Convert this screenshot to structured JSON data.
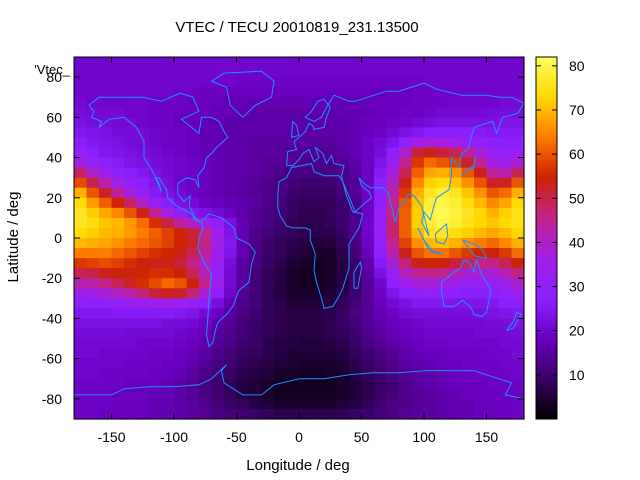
{
  "chart_data": {
    "type": "heatmap",
    "title": "VTEC / TECU 20010819_231.13500",
    "xlabel": "Longitude / deg",
    "ylabel": "Latitude / deg",
    "series_label": "'Vtec_",
    "xlim": [
      -180,
      180
    ],
    "ylim": [
      -90,
      90
    ],
    "xticks": [
      -150,
      -100,
      -50,
      0,
      50,
      100,
      150
    ],
    "yticks": [
      -80,
      -60,
      -40,
      -20,
      0,
      20,
      40,
      60,
      80
    ],
    "colorbar": {
      "range": [
        0,
        82
      ],
      "ticks": [
        10,
        20,
        30,
        40,
        50,
        60,
        70,
        80
      ]
    },
    "colormap": [
      "#000000",
      "#3a0066",
      "#6a00c0",
      "#8a20ff",
      "#a21fe8",
      "#c2238c",
      "#cc2200",
      "#ff7a00",
      "#ffd800",
      "#ffff60"
    ],
    "grid": false,
    "lat": [
      87.5,
      82.5,
      77.5,
      72.5,
      67.5,
      62.5,
      57.5,
      52.5,
      47.5,
      42.5,
      37.5,
      32.5,
      27.5,
      22.5,
      17.5,
      12.5,
      7.5,
      2.5,
      -2.5,
      -7.5,
      -12.5,
      -17.5,
      -22.5,
      -27.5,
      -32.5,
      -37.5,
      -42.5,
      -47.5,
      -52.5,
      -57.5,
      -62.5,
      -67.5,
      -72.5,
      -77.5,
      -82.5,
      -87.5
    ],
    "lon": [
      -175,
      -165,
      -155,
      -145,
      -135,
      -125,
      -115,
      -105,
      -95,
      -85,
      -75,
      -65,
      -55,
      -45,
      -35,
      -25,
      -15,
      -5,
      5,
      15,
      25,
      35,
      45,
      55,
      65,
      75,
      85,
      95,
      105,
      115,
      125,
      135,
      145,
      155,
      165,
      175
    ],
    "values": [
      [
        20,
        20,
        20,
        20,
        20,
        20,
        20,
        20,
        20,
        20,
        20,
        20,
        20,
        20,
        20,
        20,
        20,
        20,
        20,
        20,
        20,
        20,
        20,
        20,
        20,
        20,
        20,
        20,
        20,
        20,
        20,
        20,
        20,
        20,
        20,
        20
      ],
      [
        20,
        20,
        20,
        20,
        20,
        20,
        20,
        20,
        20,
        20,
        20,
        20,
        20,
        20,
        20,
        20,
        20,
        20,
        20,
        20,
        20,
        20,
        20,
        20,
        20,
        20,
        20,
        20,
        20,
        20,
        20,
        20,
        20,
        20,
        20,
        20
      ],
      [
        20,
        20,
        20,
        20,
        20,
        20,
        20,
        20,
        20,
        20,
        20,
        20,
        20,
        19,
        19,
        19,
        19,
        19,
        19,
        19,
        19,
        19,
        19,
        19,
        19,
        19,
        19,
        19,
        20,
        20,
        20,
        20,
        20,
        20,
        20,
        20
      ],
      [
        20,
        20,
        20,
        20,
        20,
        20,
        20,
        20,
        19,
        19,
        18,
        18,
        18,
        18,
        18,
        18,
        18,
        18,
        18,
        18,
        18,
        18,
        18,
        18,
        18,
        18,
        18,
        19,
        19,
        20,
        20,
        20,
        20,
        20,
        20,
        20
      ],
      [
        21,
        20,
        20,
        20,
        20,
        20,
        19,
        19,
        19,
        18,
        18,
        18,
        17,
        17,
        17,
        17,
        17,
        17,
        17,
        17,
        17,
        17,
        17,
        18,
        18,
        18,
        18,
        19,
        19,
        19,
        20,
        20,
        20,
        20,
        21,
        21
      ],
      [
        22,
        21,
        21,
        21,
        20,
        20,
        19,
        19,
        18,
        18,
        18,
        17,
        17,
        17,
        16,
        16,
        16,
        16,
        16,
        16,
        16,
        17,
        17,
        17,
        18,
        18,
        19,
        19,
        20,
        21,
        21,
        21,
        21,
        22,
        22,
        22
      ],
      [
        23,
        22,
        22,
        21,
        21,
        20,
        19,
        19,
        18,
        18,
        17,
        17,
        16,
        16,
        16,
        16,
        16,
        16,
        16,
        16,
        16,
        16,
        17,
        18,
        18,
        19,
        20,
        21,
        22,
        23,
        23,
        23,
        23,
        23,
        24,
        24
      ],
      [
        25,
        24,
        23,
        22,
        22,
        21,
        20,
        19,
        19,
        18,
        17,
        17,
        16,
        16,
        16,
        16,
        16,
        16,
        15,
        16,
        16,
        16,
        17,
        18,
        19,
        21,
        23,
        25,
        27,
        27,
        27,
        27,
        26,
        25,
        26,
        26
      ],
      [
        27,
        25,
        24,
        23,
        22,
        21,
        20,
        19,
        19,
        18,
        17,
        17,
        16,
        16,
        15,
        15,
        15,
        15,
        15,
        15,
        15,
        16,
        17,
        19,
        21,
        24,
        29,
        36,
        38,
        37,
        36,
        33,
        30,
        28,
        28,
        28
      ],
      [
        31,
        27,
        25,
        24,
        23,
        22,
        21,
        20,
        19,
        18,
        17,
        17,
        16,
        16,
        15,
        15,
        15,
        14,
        14,
        14,
        14,
        15,
        17,
        19,
        22,
        29,
        39,
        51,
        53,
        51,
        49,
        44,
        38,
        32,
        31,
        32
      ],
      [
        37,
        31,
        28,
        26,
        24,
        23,
        22,
        21,
        20,
        19,
        18,
        17,
        16,
        16,
        15,
        14,
        14,
        14,
        13,
        13,
        13,
        14,
        16,
        19,
        24,
        33,
        45,
        57,
        62,
        60,
        58,
        52,
        45,
        37,
        35,
        38
      ],
      [
        48,
        40,
        34,
        30,
        27,
        25,
        23,
        21,
        20,
        19,
        18,
        17,
        16,
        16,
        15,
        14,
        13,
        12,
        12,
        12,
        12,
        13,
        15,
        19,
        26,
        37,
        49,
        61,
        68,
        69,
        66,
        60,
        53,
        44,
        42,
        49
      ],
      [
        59,
        50,
        42,
        36,
        31,
        27,
        24,
        22,
        20,
        19,
        18,
        17,
        16,
        15,
        14,
        13,
        12,
        11,
        10,
        10,
        10,
        12,
        14,
        19,
        28,
        40,
        53,
        65,
        72,
        74,
        71,
        66,
        60,
        52,
        52,
        60
      ],
      [
        69,
        60,
        52,
        44,
        37,
        31,
        26,
        23,
        21,
        19,
        18,
        17,
        16,
        15,
        14,
        13,
        12,
        10,
        9,
        9,
        9,
        11,
        14,
        19,
        29,
        43,
        57,
        69,
        76,
        78,
        76,
        71,
        66,
        60,
        62,
        69
      ],
      [
        74,
        67,
        61,
        55,
        48,
        40,
        33,
        27,
        23,
        21,
        19,
        18,
        17,
        16,
        15,
        13,
        11,
        9,
        8,
        8,
        8,
        10,
        13,
        19,
        30,
        45,
        60,
        71,
        78,
        80,
        78,
        74,
        70,
        65,
        68,
        73
      ],
      [
        76,
        72,
        68,
        65,
        60,
        53,
        45,
        37,
        30,
        25,
        23,
        21,
        18,
        16,
        14,
        12,
        11,
        9,
        7,
        7,
        8,
        10,
        13,
        19,
        31,
        46,
        61,
        72,
        79,
        81,
        79,
        76,
        73,
        69,
        72,
        75
      ],
      [
        76,
        74,
        71,
        70,
        67,
        62,
        56,
        50,
        44,
        40,
        36,
        30,
        23,
        17,
        14,
        12,
        10,
        8,
        7,
        7,
        8,
        10,
        13,
        20,
        31,
        47,
        61,
        72,
        78,
        80,
        78,
        75,
        73,
        71,
        73,
        75
      ],
      [
        74,
        72,
        70,
        69,
        67,
        64,
        61,
        58,
        55,
        51,
        45,
        35,
        24,
        17,
        13,
        11,
        9,
        8,
        7,
        7,
        7,
        9,
        13,
        20,
        32,
        47,
        61,
        70,
        75,
        76,
        74,
        72,
        70,
        68,
        70,
        73
      ],
      [
        70,
        69,
        68,
        66,
        64,
        62,
        60,
        58,
        55,
        52,
        46,
        36,
        25,
        17,
        13,
        10,
        8,
        7,
        6,
        5,
        6,
        8,
        12,
        19,
        31,
        45,
        58,
        66,
        70,
        71,
        69,
        66,
        64,
        62,
        65,
        69
      ],
      [
        64,
        64,
        64,
        62,
        60,
        58,
        56,
        55,
        53,
        49,
        44,
        35,
        24,
        17,
        12,
        10,
        8,
        6,
        5,
        4,
        4,
        7,
        11,
        18,
        29,
        42,
        53,
        60,
        63,
        63,
        60,
        57,
        55,
        54,
        57,
        62
      ],
      [
        57,
        58,
        59,
        58,
        56,
        54,
        53,
        53,
        51,
        46,
        40,
        32,
        22,
        15,
        12,
        9,
        7,
        5,
        4,
        3,
        4,
        6,
        10,
        16,
        26,
        38,
        47,
        53,
        55,
        54,
        51,
        48,
        46,
        46,
        49,
        54
      ],
      [
        49,
        50,
        53,
        54,
        54,
        55,
        56,
        56,
        54,
        49,
        41,
        31,
        21,
        15,
        11,
        8,
        6,
        4,
        3,
        3,
        4,
        6,
        9,
        15,
        23,
        33,
        41,
        45,
        46,
        45,
        42,
        39,
        38,
        38,
        42,
        46
      ],
      [
        42,
        43,
        46,
        49,
        52,
        56,
        59,
        62,
        60,
        54,
        45,
        33,
        21,
        15,
        11,
        8,
        6,
        4,
        3,
        3,
        4,
        6,
        9,
        14,
        20,
        28,
        34,
        38,
        38,
        37,
        35,
        32,
        31,
        32,
        35,
        39
      ],
      [
        35,
        36,
        38,
        40,
        43,
        47,
        51,
        53,
        52,
        47,
        39,
        29,
        20,
        14,
        11,
        8,
        6,
        4,
        4,
        4,
        5,
        7,
        10,
        14,
        19,
        24,
        28,
        30,
        31,
        30,
        29,
        27,
        27,
        28,
        31,
        34
      ],
      [
        29,
        29,
        30,
        31,
        32,
        33,
        34,
        35,
        34,
        31,
        27,
        22,
        17,
        13,
        11,
        8,
        7,
        5,
        5,
        5,
        6,
        8,
        11,
        14,
        18,
        21,
        23,
        25,
        25,
        25,
        24,
        24,
        24,
        25,
        27,
        28
      ],
      [
        25,
        25,
        25,
        26,
        26,
        26,
        26,
        26,
        25,
        24,
        21,
        18,
        15,
        12,
        10,
        8,
        7,
        6,
        6,
        6,
        7,
        9,
        12,
        14,
        17,
        19,
        21,
        22,
        22,
        22,
        22,
        22,
        22,
        23,
        24,
        25
      ],
      [
        23,
        23,
        23,
        23,
        23,
        23,
        23,
        22,
        22,
        21,
        19,
        16,
        14,
        11,
        10,
        8,
        7,
        6,
        6,
        6,
        7,
        9,
        11,
        14,
        16,
        18,
        19,
        20,
        21,
        21,
        21,
        21,
        21,
        22,
        22,
        23
      ],
      [
        22,
        22,
        22,
        22,
        21,
        21,
        21,
        21,
        20,
        19,
        17,
        15,
        13,
        11,
        9,
        8,
        7,
        6,
        6,
        6,
        7,
        8,
        10,
        13,
        15,
        17,
        18,
        19,
        20,
        20,
        20,
        20,
        21,
        21,
        21,
        22
      ],
      [
        21,
        21,
        21,
        21,
        21,
        20,
        20,
        20,
        19,
        18,
        16,
        14,
        12,
        10,
        9,
        7,
        6,
        6,
        5,
        5,
        6,
        7,
        9,
        12,
        14,
        16,
        17,
        18,
        19,
        19,
        20,
        20,
        20,
        20,
        21,
        21
      ],
      [
        21,
        21,
        20,
        20,
        20,
        20,
        19,
        19,
        18,
        17,
        15,
        13,
        11,
        9,
        8,
        7,
        6,
        5,
        5,
        5,
        5,
        6,
        8,
        10,
        12,
        14,
        16,
        17,
        18,
        18,
        19,
        19,
        19,
        20,
        20,
        21
      ],
      [
        20,
        20,
        20,
        20,
        19,
        19,
        19,
        18,
        18,
        16,
        14,
        12,
        10,
        8,
        7,
        6,
        5,
        5,
        4,
        4,
        4,
        5,
        7,
        9,
        11,
        13,
        15,
        16,
        17,
        18,
        18,
        19,
        19,
        19,
        20,
        20
      ],
      [
        20,
        20,
        19,
        19,
        19,
        19,
        18,
        18,
        17,
        15,
        13,
        11,
        9,
        7,
        6,
        5,
        4,
        4,
        3,
        3,
        4,
        4,
        6,
        8,
        10,
        12,
        14,
        15,
        16,
        17,
        18,
        18,
        19,
        19,
        19,
        20
      ],
      [
        19,
        19,
        19,
        19,
        18,
        18,
        18,
        17,
        16,
        14,
        12,
        10,
        8,
        6,
        5,
        4,
        3,
        3,
        3,
        3,
        3,
        4,
        5,
        7,
        9,
        11,
        13,
        15,
        16,
        17,
        18,
        18,
        18,
        19,
        19,
        19
      ],
      [
        19,
        19,
        19,
        18,
        18,
        18,
        17,
        17,
        16,
        14,
        12,
        10,
        8,
        6,
        5,
        4,
        3,
        3,
        3,
        3,
        3,
        4,
        5,
        7,
        9,
        11,
        13,
        14,
        15,
        16,
        17,
        18,
        18,
        18,
        19,
        19
      ],
      [
        19,
        19,
        19,
        18,
        18,
        18,
        17,
        17,
        16,
        15,
        13,
        11,
        9,
        8,
        6,
        5,
        4,
        4,
        4,
        4,
        4,
        5,
        6,
        8,
        10,
        12,
        13,
        14,
        15,
        16,
        17,
        17,
        18,
        18,
        18,
        19
      ],
      [
        19,
        19,
        18,
        18,
        18,
        18,
        17,
        17,
        16,
        15,
        14,
        12,
        11,
        10,
        9,
        8,
        7,
        7,
        7,
        7,
        7,
        8,
        9,
        10,
        11,
        12,
        14,
        15,
        15,
        16,
        17,
        17,
        18,
        18,
        18,
        19
      ]
    ]
  }
}
